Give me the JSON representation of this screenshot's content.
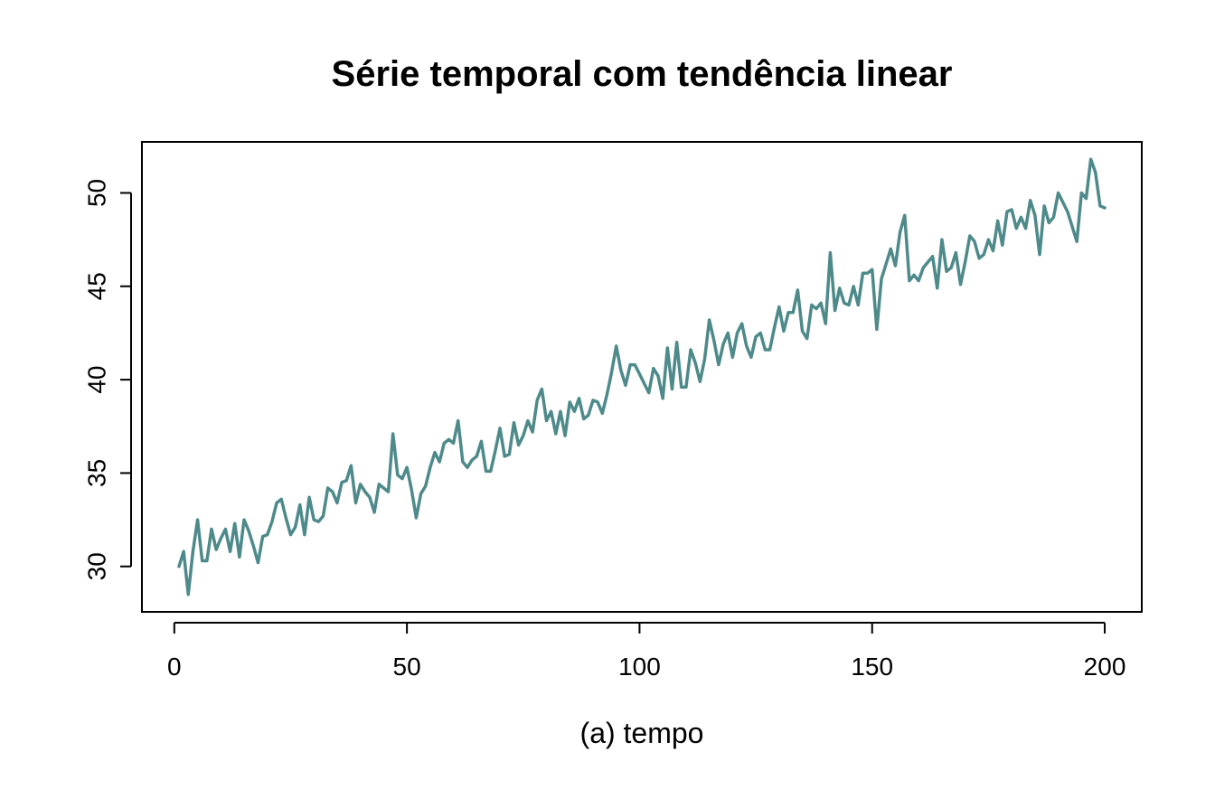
{
  "chart_data": {
    "type": "line",
    "title": "Série temporal com tendência linear",
    "xlabel": "(a) tempo",
    "ylabel": "",
    "xlim": [
      1,
      200
    ],
    "ylim": [
      28.5,
      51.8
    ],
    "x_ticks": [
      0,
      50,
      100,
      150,
      200
    ],
    "y_ticks": [
      30,
      35,
      40,
      45,
      50
    ],
    "color": "#4f8a8b",
    "grid": false,
    "series": [
      {
        "x": [
          1,
          2,
          3,
          4,
          5,
          6,
          7,
          8,
          9,
          10,
          11,
          12,
          13,
          14,
          15,
          16,
          17,
          18,
          19,
          20,
          21,
          22,
          23,
          24,
          25,
          26,
          27,
          28,
          29,
          30,
          31,
          32,
          33,
          34,
          35,
          36,
          37,
          38,
          39,
          40,
          41,
          42,
          43,
          44,
          45,
          46,
          47,
          48,
          49,
          50,
          51,
          52,
          53,
          54,
          55,
          56,
          57,
          58,
          59,
          60,
          61,
          62,
          63,
          64,
          65,
          66,
          67,
          68,
          69,
          70,
          71,
          72,
          73,
          74,
          75,
          76,
          77,
          78,
          79,
          80,
          81,
          82,
          83,
          84,
          85,
          86,
          87,
          88,
          89,
          90,
          91,
          92,
          93,
          94,
          95,
          96,
          97,
          98,
          99,
          100,
          101,
          102,
          103,
          104,
          105,
          106,
          107,
          108,
          109,
          110,
          111,
          112,
          113,
          114,
          115,
          116,
          117,
          118,
          119,
          120,
          121,
          122,
          123,
          124,
          125,
          126,
          127,
          128,
          129,
          130,
          131,
          132,
          133,
          134,
          135,
          136,
          137,
          138,
          139,
          140,
          141,
          142,
          143,
          144,
          145,
          146,
          147,
          148,
          149,
          150,
          151,
          152,
          153,
          154,
          155,
          156,
          157,
          158,
          159,
          160,
          161,
          162,
          163,
          164,
          165,
          166,
          167,
          168,
          169,
          170,
          171,
          172,
          173,
          174,
          175,
          176,
          177,
          178,
          179,
          180,
          181,
          182,
          183,
          184,
          185,
          186,
          187,
          188,
          189,
          190,
          191,
          192,
          193,
          194,
          195,
          196,
          197,
          198,
          199,
          200
        ],
        "values": [
          30.0,
          30.8,
          28.5,
          30.8,
          32.5,
          30.3,
          30.3,
          32.0,
          30.9,
          31.5,
          32.0,
          30.8,
          32.3,
          30.5,
          32.5,
          31.9,
          31.1,
          30.2,
          31.6,
          31.7,
          32.4,
          33.4,
          33.6,
          32.6,
          31.7,
          32.1,
          33.3,
          31.7,
          33.7,
          32.5,
          32.4,
          32.7,
          34.2,
          34.0,
          33.4,
          34.5,
          34.6,
          35.4,
          33.4,
          34.4,
          34.0,
          33.7,
          32.9,
          34.4,
          34.2,
          34.0,
          37.1,
          34.9,
          34.7,
          35.3,
          34.1,
          32.6,
          33.9,
          34.3,
          35.3,
          36.1,
          35.6,
          36.6,
          36.8,
          36.6,
          37.8,
          35.6,
          35.3,
          35.7,
          35.9,
          36.7,
          35.1,
          35.1,
          36.2,
          37.4,
          35.9,
          36.0,
          37.7,
          36.5,
          37.0,
          37.8,
          37.2,
          38.9,
          39.5,
          37.8,
          38.3,
          37.1,
          38.3,
          37.0,
          38.8,
          38.3,
          39.0,
          37.9,
          38.1,
          38.9,
          38.8,
          38.2,
          39.2,
          40.4,
          41.8,
          40.5,
          39.7,
          40.8,
          40.8,
          40.3,
          39.8,
          39.3,
          40.6,
          40.2,
          39.0,
          41.7,
          39.5,
          42.0,
          39.6,
          39.6,
          41.6,
          40.9,
          39.9,
          41.1,
          43.2,
          42.1,
          40.8,
          41.9,
          42.5,
          41.2,
          42.5,
          43.0,
          41.8,
          41.2,
          42.3,
          42.5,
          41.6,
          41.6,
          42.8,
          43.9,
          42.6,
          43.6,
          43.6,
          44.8,
          42.6,
          42.2,
          44.0,
          43.8,
          44.1,
          43.0,
          46.8,
          43.7,
          44.9,
          44.1,
          44.0,
          45.0,
          44.0,
          45.7,
          45.7,
          45.9,
          42.7,
          45.4,
          46.2,
          47.0,
          46.1,
          47.9,
          48.8,
          45.3,
          45.6,
          45.3,
          46.0,
          46.3,
          46.6,
          44.9,
          47.5,
          45.8,
          46.0,
          46.8,
          45.1,
          46.3,
          47.7,
          47.4,
          46.5,
          46.7,
          47.5,
          46.9,
          48.5,
          47.2,
          49.0,
          49.1,
          48.1,
          48.7,
          48.1,
          49.6,
          48.8,
          46.7,
          49.3,
          48.4,
          48.7,
          50.0,
          49.5,
          49.0,
          48.2,
          47.4,
          50.0,
          49.7,
          51.8,
          51.1,
          49.3,
          49.2
        ]
      }
    ]
  }
}
